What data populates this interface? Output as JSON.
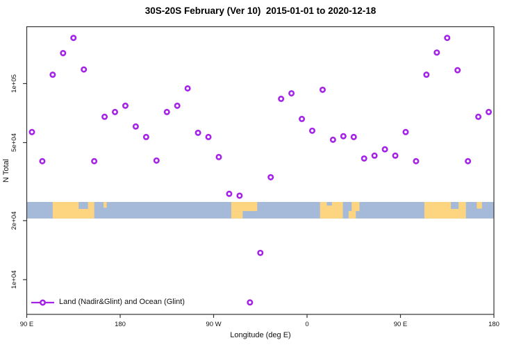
{
  "chart_data": {
    "type": "scatter",
    "title": "30S-20S February (Ver 10)  2015-01-01 to 2020-12-18",
    "xlabel": "Longitude (deg E)",
    "ylabel": "N Total",
    "x_scale": "linear",
    "y_scale": "log10",
    "xlim": [
      90,
      540
    ],
    "ylim": [
      6650,
      195000
    ],
    "grid": false,
    "x_ticks": [
      {
        "value": 90,
        "label": "90 E"
      },
      {
        "value": 180,
        "label": "180"
      },
      {
        "value": 270,
        "label": "90 W"
      },
      {
        "value": 360,
        "label": "0"
      },
      {
        "value": 450,
        "label": "90 E"
      },
      {
        "value": 540,
        "label": "180"
      }
    ],
    "y_ticks": [
      {
        "value": 100000,
        "label": "1e+05"
      },
      {
        "value": 50000,
        "label": "5e+04"
      },
      {
        "value": 20000,
        "label": "2e+04"
      },
      {
        "value": 10000,
        "label": "1e+04"
      }
    ],
    "legend": {
      "position": "bottom-left",
      "entries": [
        {
          "label": "Land (Nadir&Glint) and Ocean (Glint)",
          "marker": "open-circle-with-line"
        }
      ]
    },
    "series": [
      {
        "name": "N Total",
        "marker": "open-circle",
        "points": [
          {
            "lon": 95,
            "n": 56600
          },
          {
            "lon": 105,
            "n": 40200
          },
          {
            "lon": 115,
            "n": 111000
          },
          {
            "lon": 125,
            "n": 143000
          },
          {
            "lon": 135,
            "n": 171000
          },
          {
            "lon": 145,
            "n": 118000
          },
          {
            "lon": 155,
            "n": 40200
          },
          {
            "lon": 165,
            "n": 67700
          },
          {
            "lon": 175,
            "n": 71600
          },
          {
            "lon": 185,
            "n": 77100
          },
          {
            "lon": 195,
            "n": 60400
          },
          {
            "lon": 205,
            "n": 53400
          },
          {
            "lon": 215,
            "n": 40500
          },
          {
            "lon": 225,
            "n": 71600
          },
          {
            "lon": 235,
            "n": 77100
          },
          {
            "lon": 245,
            "n": 94500
          },
          {
            "lon": 255,
            "n": 56100
          },
          {
            "lon": 265,
            "n": 53400
          },
          {
            "lon": 275,
            "n": 42200
          },
          {
            "lon": 285,
            "n": 27400
          },
          {
            "lon": 295,
            "n": 26800
          },
          {
            "lon": 305,
            "n": 7650
          },
          {
            "lon": 315,
            "n": 13700
          },
          {
            "lon": 325,
            "n": 33300
          },
          {
            "lon": 335,
            "n": 83600
          },
          {
            "lon": 345,
            "n": 89200
          },
          {
            "lon": 355,
            "n": 66000
          },
          {
            "lon": 365,
            "n": 57500
          },
          {
            "lon": 375,
            "n": 93000
          },
          {
            "lon": 385,
            "n": 51700
          },
          {
            "lon": 395,
            "n": 53900
          },
          {
            "lon": 405,
            "n": 53400
          },
          {
            "lon": 415,
            "n": 41500
          },
          {
            "lon": 425,
            "n": 42900
          },
          {
            "lon": 435,
            "n": 46200
          },
          {
            "lon": 445,
            "n": 42900
          },
          {
            "lon": 455,
            "n": 56600
          },
          {
            "lon": 465,
            "n": 40200
          },
          {
            "lon": 475,
            "n": 111000
          },
          {
            "lon": 485,
            "n": 144000
          },
          {
            "lon": 495,
            "n": 171000
          },
          {
            "lon": 505,
            "n": 117000
          },
          {
            "lon": 515,
            "n": 40200
          },
          {
            "lon": 525,
            "n": 67700
          },
          {
            "lon": 535,
            "n": 71600
          }
        ]
      }
    ],
    "map_strip": {
      "description": "coastline band 30S-20S drawn across plot",
      "top_n": 24900,
      "bottom_n": 20500,
      "patches": [
        {
          "name": "australia",
          "lon0": 115,
          "lon1": 155,
          "f0": 0,
          "f1": 1,
          "type": "land"
        },
        {
          "name": "gulf-of-carpentaria",
          "lon0": 140,
          "lon1": 149,
          "f0": 0,
          "f1": 0.42,
          "type": "ocean"
        },
        {
          "name": "new-caledonia",
          "lon0": 164,
          "lon1": 167,
          "f0": 0,
          "f1": 0.35,
          "type": "land"
        },
        {
          "name": "south-america-north",
          "lon0": 287,
          "lon1": 312,
          "f0": 0,
          "f1": 0.55,
          "type": "land"
        },
        {
          "name": "south-america-south",
          "lon0": 287,
          "lon1": 298,
          "f0": 0.55,
          "f1": 1,
          "type": "land"
        },
        {
          "name": "africa",
          "lon0": 372.5,
          "lon1": 394.5,
          "f0": 0,
          "f1": 1,
          "type": "land"
        },
        {
          "name": "africa-coast-notch",
          "lon0": 379,
          "lon1": 384,
          "f0": 0,
          "f1": 0.22,
          "type": "ocean"
        },
        {
          "name": "madagascar-north",
          "lon0": 403,
          "lon1": 410.5,
          "f0": 0,
          "f1": 0.55,
          "type": "land"
        },
        {
          "name": "madagascar-south",
          "lon0": 400,
          "lon1": 407,
          "f0": 0.55,
          "f1": 1,
          "type": "land"
        },
        {
          "name": "australia-wrap",
          "lon0": 473,
          "lon1": 513,
          "f0": 0,
          "f1": 1,
          "type": "land"
        },
        {
          "name": "gulf-of-carpentaria-wrap",
          "lon0": 498.5,
          "lon1": 506,
          "f0": 0,
          "f1": 0.42,
          "type": "ocean"
        },
        {
          "name": "new-caledonia-wrap",
          "lon0": 523.5,
          "lon1": 528.5,
          "f0": 0,
          "f1": 0.4,
          "type": "land"
        }
      ]
    },
    "colors": {
      "marker": "#A522E8",
      "ocean": "#a4bad8",
      "land": "#fdd580",
      "axis": "#333333"
    }
  }
}
